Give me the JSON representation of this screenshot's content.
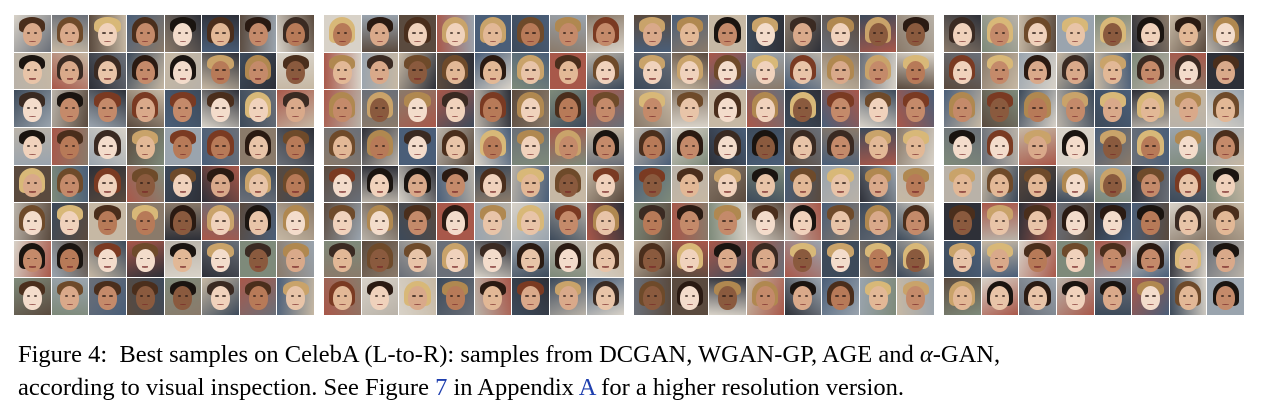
{
  "figure": {
    "panels": [
      {
        "name": "DCGAN",
        "rows": 8,
        "cols": 8
      },
      {
        "name": "WGAN-GP",
        "rows": 8,
        "cols": 8
      },
      {
        "name": "AGE",
        "rows": 8,
        "cols": 8
      },
      {
        "name": "α-GAN",
        "rows": 8,
        "cols": 8
      }
    ],
    "caption": {
      "label": "Figure 4:",
      "line1_text": "Best samples on CelebA (L-to-R): samples from DCGAN, WGAN-GP, AGE and ",
      "alpha": "α",
      "line1_end": "-GAN,",
      "line2_pre": "according to visual inspection. See Figure ",
      "fig_ref": "7",
      "line2_mid": " in Appendix ",
      "appendix_ref": "A",
      "line2_end": " for a higher resolution version."
    },
    "colors": {
      "link": "#1f3fae",
      "text": "#000000"
    }
  }
}
